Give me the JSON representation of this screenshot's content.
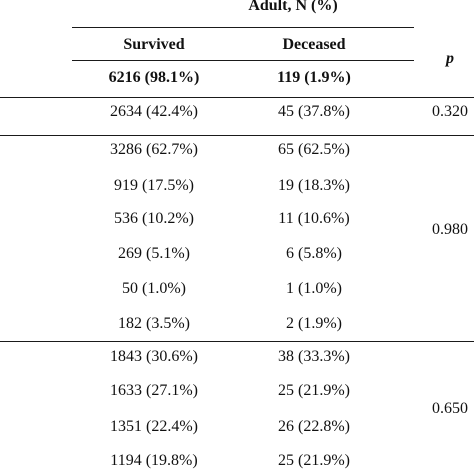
{
  "header": {
    "group_label": "Adult, N (%)",
    "survived_label": "Survived",
    "deceased_label": "Deceased",
    "p_label": "p"
  },
  "totals": {
    "survived": "6216 (98.1%)",
    "deceased": "119 (1.9%)"
  },
  "rows": [
    {
      "survived": "2634 (42.4%)",
      "deceased": "45 (37.8%)"
    },
    {
      "survived": "3286 (62.7%)",
      "deceased": "65 (62.5%)"
    },
    {
      "survived": "919 (17.5%)",
      "deceased": "19 (18.3%)"
    },
    {
      "survived": "536 (10.2%)",
      "deceased": "11 (10.6%)"
    },
    {
      "survived": "269 (5.1%)",
      "deceased": "6 (5.8%)"
    },
    {
      "survived": "50 (1.0%)",
      "deceased": "1 (1.0%)"
    },
    {
      "survived": "182 (3.5%)",
      "deceased": "2 (1.9%)"
    },
    {
      "survived": "1843 (30.6%)",
      "deceased": "38 (33.3%)"
    },
    {
      "survived": "1633 (27.1%)",
      "deceased": "25 (21.9%)"
    },
    {
      "survived": "1351 (22.4%)",
      "deceased": "26 (22.8%)"
    },
    {
      "survived": "1194 (19.8%)",
      "deceased": "25 (21.9%)"
    }
  ],
  "p_values": [
    "0.320",
    "0.980",
    "0.650"
  ]
}
